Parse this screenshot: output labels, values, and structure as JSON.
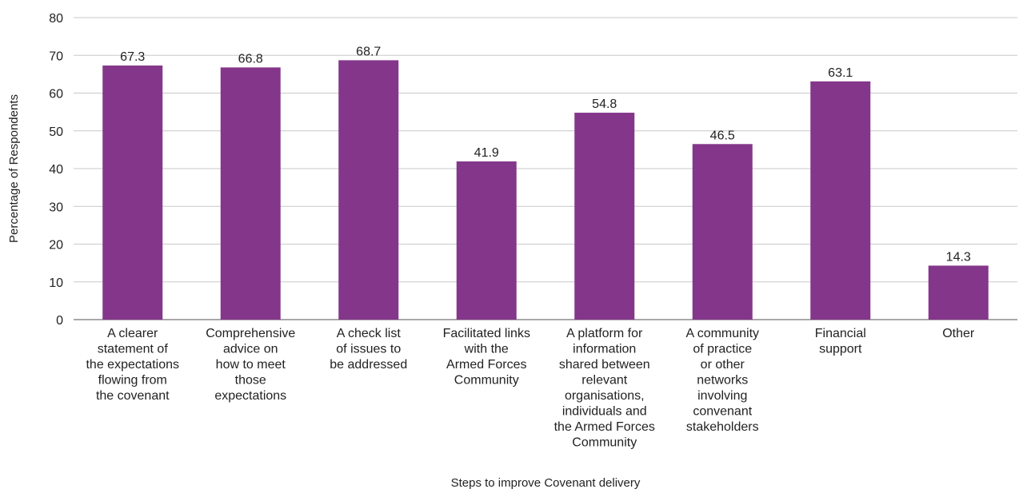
{
  "chart_data": {
    "type": "bar",
    "categories": [
      [
        "A clearer",
        "statement of",
        "the expectations",
        "flowing from",
        "the covenant"
      ],
      [
        "Comprehensive",
        "advice on",
        "how to meet",
        "those",
        "expectations"
      ],
      [
        "A check list",
        "of issues to",
        "be addressed"
      ],
      [
        "Facilitated links",
        "with the",
        "Armed Forces",
        "Community"
      ],
      [
        "A platform for",
        "information",
        "shared between",
        "relevant",
        "organisations,",
        "individuals and",
        "the Armed Forces",
        "Community"
      ],
      [
        "A community",
        "of practice",
        "or other",
        "networks",
        "involving",
        "convenant",
        "stakeholders"
      ],
      [
        "Financial",
        "support"
      ],
      [
        "Other"
      ]
    ],
    "values": [
      67.3,
      66.8,
      68.7,
      41.9,
      54.8,
      46.5,
      63.1,
      14.3
    ],
    "data_labels": [
      "67.3",
      "66.8",
      "68.7",
      "41.9",
      "54.8",
      "46.5",
      "63.1",
      "14.3"
    ],
    "xlabel": "Steps to improve Covenant delivery",
    "ylabel": "Percentage of Respondents",
    "ylim": [
      0,
      80
    ],
    "yticks": [
      0,
      10,
      20,
      30,
      40,
      50,
      60,
      70,
      80
    ],
    "grid": true,
    "legend": "none",
    "bar_color": "#84368a"
  }
}
